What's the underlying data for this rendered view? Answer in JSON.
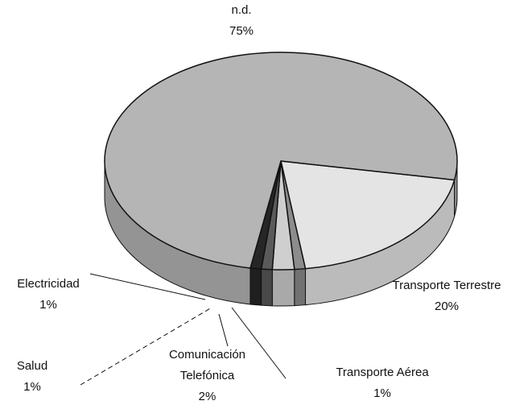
{
  "chart_data": {
    "type": "pie",
    "categories": [
      "Transporte Terrestre",
      "Transporte Aérea",
      "Comunicación Telefónica",
      "Salud",
      "Electricidad",
      "n.d."
    ],
    "values": [
      20,
      1,
      2,
      1,
      1,
      75
    ],
    "value_labels": [
      "20%",
      "1%",
      "2%",
      "1%",
      "1%",
      "75%"
    ],
    "colors": [
      "#e4e4e4",
      "#8c8c8c",
      "#cfcfcf",
      "#5a5a5a",
      "#262626",
      "#b5b5b5"
    ]
  }
}
